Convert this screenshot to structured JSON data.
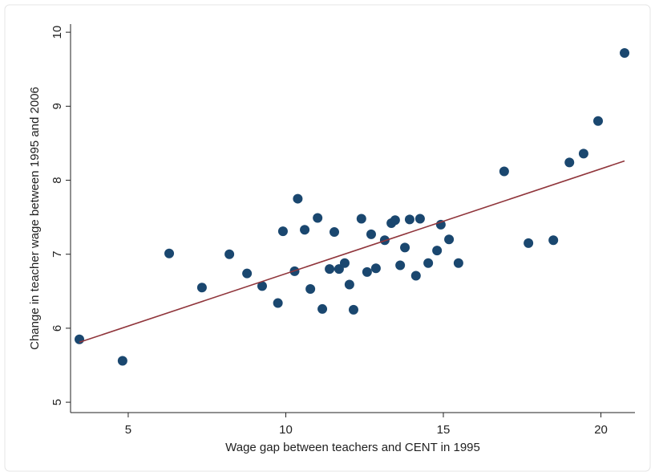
{
  "chart_data": {
    "type": "scatter",
    "x_label": "Wage gap between teachers and CENT in 1995",
    "y_label": "Change in teacher wage between 1995 and 2006",
    "xlim": [
      3.17,
      21.08
    ],
    "ylim": [
      4.86,
      10.11
    ],
    "xticks": [
      5,
      10,
      15,
      20
    ],
    "yticks": [
      5,
      6,
      7,
      8,
      9,
      10
    ],
    "color": "#1a476f",
    "x": [
      3.45,
      4.82,
      6.3,
      7.34,
      8.21,
      8.77,
      9.25,
      9.75,
      9.91,
      10.28,
      10.38,
      10.6,
      10.78,
      11.01,
      11.16,
      11.54,
      11.39,
      11.69,
      11.87,
      12.02,
      12.15,
      12.4,
      12.58,
      12.71,
      12.86,
      13.14,
      13.35,
      13.47,
      13.63,
      13.78,
      13.93,
      14.13,
      14.26,
      14.52,
      14.8,
      14.92,
      15.18,
      15.48,
      16.93,
      17.7,
      18.49,
      19.0,
      19.45,
      19.91,
      20.75
    ],
    "values": [
      5.85,
      5.56,
      7.01,
      6.55,
      7.0,
      6.74,
      6.57,
      6.34,
      7.31,
      6.77,
      7.75,
      7.33,
      6.53,
      7.49,
      6.26,
      7.3,
      6.8,
      6.8,
      6.88,
      6.59,
      6.25,
      7.48,
      6.76,
      7.27,
      6.81,
      7.19,
      7.42,
      7.46,
      6.85,
      7.09,
      7.47,
      6.71,
      7.48,
      6.88,
      7.05,
      7.4,
      7.2,
      6.88,
      8.12,
      7.15,
      7.19,
      8.24,
      8.36,
      8.8,
      9.72
    ],
    "fit": {
      "color": "#90353b",
      "x": [
        3.45,
        20.75
      ],
      "y": [
        5.81,
        8.26
      ]
    }
  }
}
